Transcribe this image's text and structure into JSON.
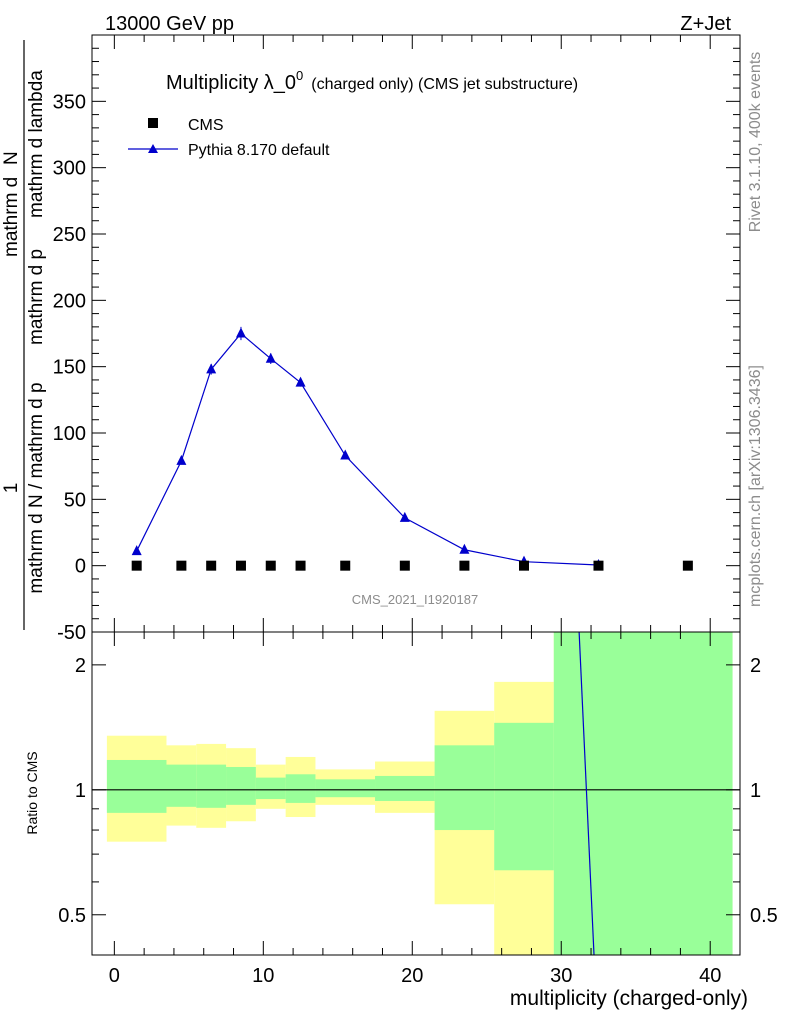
{
  "header": {
    "energy_label": "13000 GeV pp",
    "process_label": "Z+Jet"
  },
  "side_labels": {
    "rivet": "Rivet 3.1.10,  400k events",
    "mcplots": "mcplots.cern.ch [arXiv:1306.3436]"
  },
  "chart_data": [
    {
      "type": "scatter",
      "title_main": "Multiplicity λ_0",
      "title_sup": "0",
      "title_sub": "(charged only) (CMS jet substructure)",
      "ylabel_num_top": "1",
      "ylabel_den_top": "mathrm d N / mathrm d p",
      "ylabel_num_bot": "mathrm d",
      "ylabel_den_bot": "mathrm d p",
      "ylabel_num": "mathrm d",
      "ylabel_den_unused": "",
      "ylabel_frac_num": "mathrm d",
      "ylabel_parts": {
        "one": "1",
        "denom": "mathrm d N / mathrm d p",
        "big_num": "mathrm d",
        "N": "N",
        "big_den": "mathrm d p",
        "perp": "⊥",
        "rest": "mathrm d lambda"
      },
      "watermark": "CMS_2021_I1920187",
      "ylim": [
        -50,
        400
      ],
      "yticks": [
        -50,
        0,
        50,
        100,
        150,
        200,
        250,
        300,
        350
      ],
      "xlim": [
        -1.5,
        42
      ],
      "grid": false,
      "legend_position": "top-left",
      "series": [
        {
          "name": "CMS",
          "marker": "square",
          "color": "#000000",
          "x": [
            1.5,
            4.5,
            6.5,
            8.5,
            10.5,
            12.5,
            15.5,
            19.5,
            23.5,
            27.5,
            32.5,
            38.5
          ],
          "y": [
            0,
            0,
            0,
            0,
            0,
            0,
            0,
            0,
            0,
            0,
            0,
            0
          ]
        },
        {
          "name": "Pythia 8.170 default",
          "marker": "triangle",
          "color": "#0000cc",
          "x": [
            1.5,
            4.5,
            6.5,
            8.5,
            10.5,
            12.5,
            15.5,
            19.5,
            23.5,
            27.5,
            32.5
          ],
          "y": [
            11,
            79,
            148,
            175,
            156,
            138,
            83,
            36,
            12,
            3,
            0.5
          ],
          "yerr": [
            1,
            2,
            4,
            5,
            4,
            3,
            2,
            1,
            1,
            0.5,
            0.2
          ]
        }
      ]
    },
    {
      "type": "area",
      "ylabel": "Ratio to CMS",
      "xlabel": "multiplicity (charged-only)",
      "log_scale_y": true,
      "ylim": [
        0.4,
        2.4
      ],
      "yticks": [
        0.5,
        1,
        2
      ],
      "ytick_labels": [
        "0.5",
        "1",
        "2"
      ],
      "xlim": [
        -1.5,
        42
      ],
      "xticks": [
        0,
        10,
        20,
        30,
        40
      ],
      "xtick_labels": [
        "0",
        "10",
        "20",
        "30",
        "40"
      ],
      "bands_outer": [
        {
          "x0": -0.5,
          "x1": 3.5,
          "lo": 0.75,
          "hi": 1.35
        },
        {
          "x0": 3.5,
          "x1": 5.5,
          "lo": 0.82,
          "hi": 1.28
        },
        {
          "x0": 5.5,
          "x1": 7.5,
          "lo": 0.81,
          "hi": 1.29
        },
        {
          "x0": 7.5,
          "x1": 9.5,
          "lo": 0.84,
          "hi": 1.26
        },
        {
          "x0": 9.5,
          "x1": 11.5,
          "lo": 0.9,
          "hi": 1.15
        },
        {
          "x0": 11.5,
          "x1": 13.5,
          "lo": 0.86,
          "hi": 1.2
        },
        {
          "x0": 13.5,
          "x1": 17.5,
          "lo": 0.92,
          "hi": 1.12
        },
        {
          "x0": 17.5,
          "x1": 21.5,
          "lo": 0.88,
          "hi": 1.17
        },
        {
          "x0": 21.5,
          "x1": 25.5,
          "lo": 0.53,
          "hi": 1.55
        },
        {
          "x0": 25.5,
          "x1": 29.5,
          "lo": 0.36,
          "hi": 1.82
        },
        {
          "x0": 29.5,
          "x1": 41.5,
          "lo": 0.36,
          "hi": 2.5
        }
      ],
      "bands_inner": [
        {
          "x0": -0.5,
          "x1": 3.5,
          "lo": 0.88,
          "hi": 1.18
        },
        {
          "x0": 3.5,
          "x1": 5.5,
          "lo": 0.91,
          "hi": 1.15
        },
        {
          "x0": 5.5,
          "x1": 7.5,
          "lo": 0.905,
          "hi": 1.15
        },
        {
          "x0": 7.5,
          "x1": 9.5,
          "lo": 0.92,
          "hi": 1.135
        },
        {
          "x0": 9.5,
          "x1": 11.5,
          "lo": 0.95,
          "hi": 1.07
        },
        {
          "x0": 11.5,
          "x1": 13.5,
          "lo": 0.93,
          "hi": 1.09
        },
        {
          "x0": 13.5,
          "x1": 17.5,
          "lo": 0.96,
          "hi": 1.06
        },
        {
          "x0": 17.5,
          "x1": 21.5,
          "lo": 0.94,
          "hi": 1.08
        },
        {
          "x0": 21.5,
          "x1": 25.5,
          "lo": 0.8,
          "hi": 1.28
        },
        {
          "x0": 25.5,
          "x1": 29.5,
          "lo": 0.64,
          "hi": 1.45
        },
        {
          "x0": 29.5,
          "x1": 41.5,
          "lo": 0.36,
          "hi": 2.5
        }
      ],
      "reference_line": 1,
      "ratio_line": {
        "x": [
          31.2,
          32.2
        ],
        "y": [
          2.6,
          0.36
        ]
      }
    }
  ],
  "colors": {
    "outer_band": "#ffff99",
    "inner_band": "#99ff99",
    "mc_line": "#0000cc",
    "data_marker": "#000000",
    "axis": "#000000"
  }
}
